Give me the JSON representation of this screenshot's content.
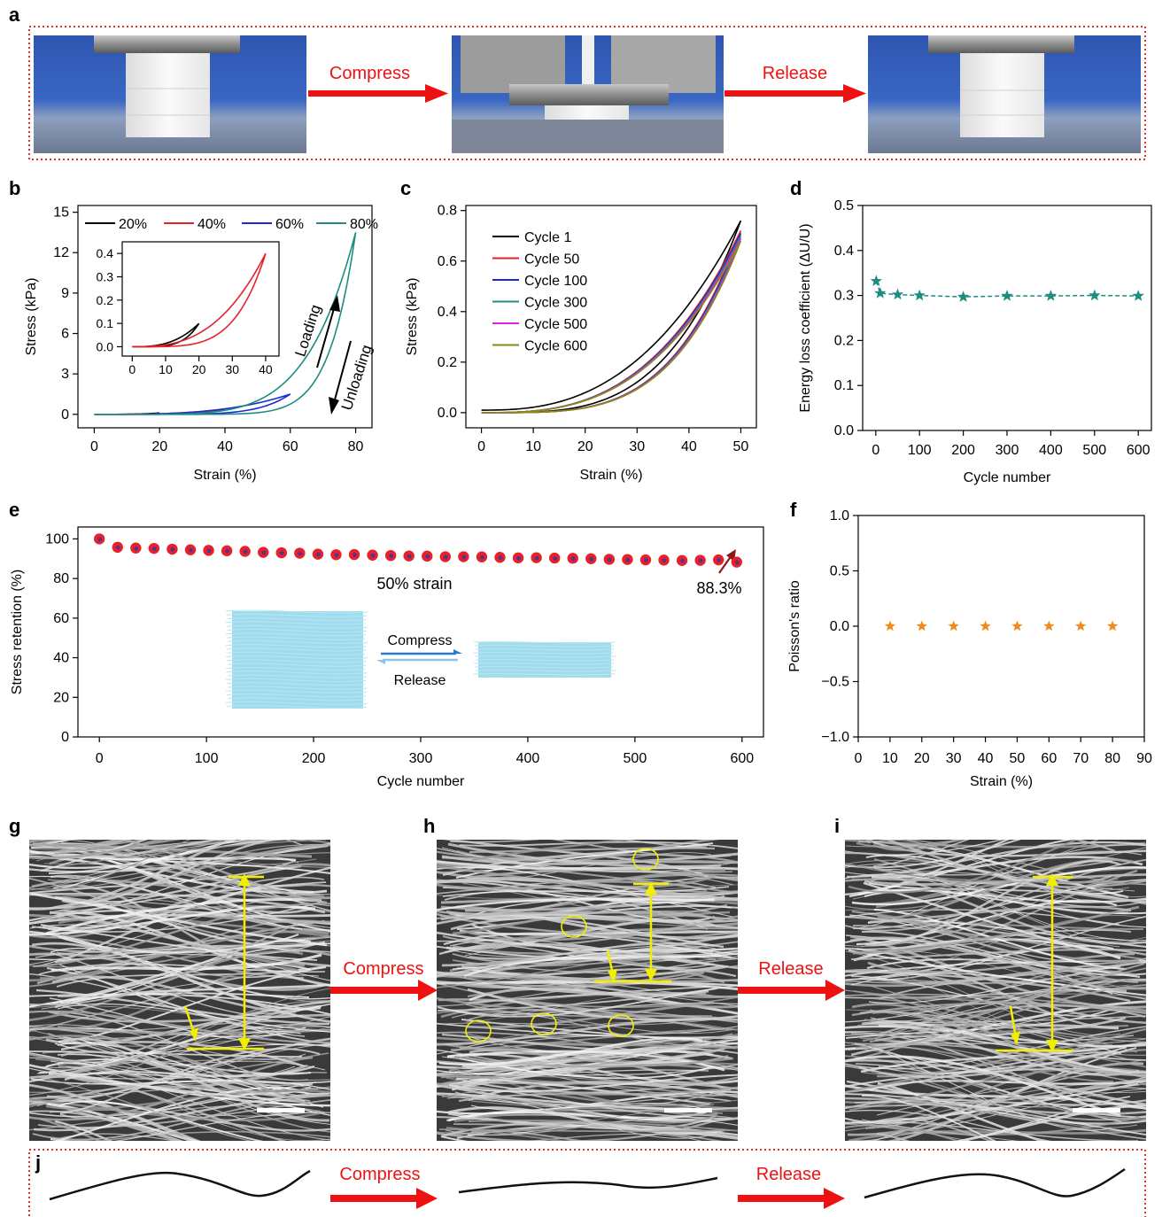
{
  "panels": {
    "a": "a",
    "b": "b",
    "c": "c",
    "d": "d",
    "e": "e",
    "f": "f",
    "g": "g",
    "h": "h",
    "i": "i",
    "j": "j"
  },
  "arrows": {
    "compress": "Compress",
    "release": "Release"
  },
  "colors": {
    "red_arrow": "#ee1111",
    "frame": "#e03030",
    "yellow": "#f2ee00",
    "teal": "#1e8c82",
    "orange": "#f08a1e",
    "bead_red": "#e8202a",
    "bead_blue": "#2a3aa8",
    "sponge": "#8fd6ea"
  },
  "chart_data": [
    {
      "id": "b",
      "type": "line",
      "xlabel": "Strain (%)",
      "ylabel": "Stress (kPa)",
      "xlim": [
        -5,
        85
      ],
      "ylim": [
        -1,
        15.5
      ],
      "xticks": [
        0,
        20,
        40,
        60,
        80
      ],
      "yticks": [
        0,
        3,
        6,
        9,
        12,
        15
      ],
      "series": [
        {
          "name": "20%",
          "color": "#000000",
          "max_strain": 20
        },
        {
          "name": "40%",
          "color": "#e8202a",
          "max_strain": 40
        },
        {
          "name": "60%",
          "color": "#1a2ad0",
          "max_strain": 60
        },
        {
          "name": "80%",
          "color": "#1e8c82",
          "max_strain": 80
        }
      ],
      "peak_stress_80": 13.5,
      "annotations": [
        "Loading",
        "Unloading"
      ],
      "legend": "top",
      "inset": {
        "xlim": [
          -3,
          44
        ],
        "ylim": [
          -0.04,
          0.45
        ],
        "xticks": [
          0,
          10,
          20,
          30,
          40
        ],
        "yticks": [
          0.0,
          0.1,
          0.2,
          0.3,
          0.4
        ],
        "series": [
          {
            "name": "20%",
            "color": "#000000",
            "max_strain": 20,
            "peak": 0.1
          },
          {
            "name": "40%",
            "color": "#e8202a",
            "max_strain": 40,
            "peak": 0.4
          }
        ]
      }
    },
    {
      "id": "c",
      "type": "line",
      "xlabel": "Strain (%)",
      "ylabel": "Stress (kPa)",
      "xlim": [
        -3,
        53
      ],
      "ylim": [
        -0.06,
        0.82
      ],
      "xticks": [
        0,
        10,
        20,
        30,
        40,
        50
      ],
      "yticks": [
        0.0,
        0.2,
        0.4,
        0.6,
        0.8
      ],
      "series": [
        {
          "name": "Cycle 1",
          "color": "#000000",
          "peak": 0.76
        },
        {
          "name": "Cycle 50",
          "color": "#e8202a",
          "peak": 0.72
        },
        {
          "name": "Cycle 100",
          "color": "#1a2ad0",
          "peak": 0.71
        },
        {
          "name": "Cycle 300",
          "color": "#1e8c82",
          "peak": 0.7
        },
        {
          "name": "Cycle 500",
          "color": "#e020e0",
          "peak": 0.69
        },
        {
          "name": "Cycle 600",
          "color": "#8a8a10",
          "peak": 0.68
        }
      ],
      "legend": "top-left"
    },
    {
      "id": "d",
      "type": "scatter",
      "xlabel": "Cycle number",
      "ylabel": "Energy loss coefficient (ΔU/U)",
      "xlim": [
        -30,
        630
      ],
      "ylim": [
        0.0,
        0.5
      ],
      "xticks": [
        0,
        100,
        200,
        300,
        400,
        500,
        600
      ],
      "yticks": [
        0.0,
        0.1,
        0.2,
        0.3,
        0.4,
        0.5
      ],
      "x": [
        1,
        10,
        50,
        100,
        200,
        300,
        400,
        500,
        600
      ],
      "y": [
        0.332,
        0.305,
        0.302,
        0.3,
        0.297,
        0.299,
        0.299,
        0.3,
        0.299
      ],
      "color": "#1e8c82"
    },
    {
      "id": "e",
      "type": "scatter",
      "xlabel": "Cycle number",
      "ylabel": "Stress retention (%)",
      "xlim": [
        -20,
        620
      ],
      "ylim": [
        0,
        106
      ],
      "xticks": [
        0,
        100,
        200,
        300,
        400,
        500,
        600
      ],
      "yticks": [
        0,
        20,
        40,
        60,
        80,
        100
      ],
      "x": [
        0,
        17,
        34,
        51,
        68,
        85,
        102,
        119,
        136,
        153,
        170,
        187,
        204,
        221,
        238,
        255,
        272,
        289,
        306,
        323,
        340,
        357,
        374,
        391,
        408,
        425,
        442,
        459,
        476,
        493,
        510,
        527,
        544,
        561,
        578,
        595
      ],
      "y": [
        100,
        95.8,
        95.4,
        95.2,
        94.8,
        94.5,
        94.2,
        94.0,
        93.7,
        93.2,
        93.0,
        92.8,
        92.3,
        92.0,
        92.1,
        91.8,
        91.6,
        91.4,
        91.3,
        91.0,
        91.0,
        90.9,
        90.7,
        90.4,
        90.5,
        90.3,
        90.2,
        90.0,
        89.7,
        89.6,
        89.4,
        89.3,
        89.1,
        89.2,
        89.4,
        88.3
      ],
      "annotations": [
        "50% strain",
        "88.3%"
      ],
      "inset_labels": {
        "compress": "Compress",
        "release": "Release"
      }
    },
    {
      "id": "f",
      "type": "scatter",
      "xlabel": "Strain (%)",
      "ylabel": "Poisson's ratio",
      "xlim": [
        0,
        90
      ],
      "ylim": [
        -1.0,
        1.0
      ],
      "xticks": [
        0,
        10,
        20,
        30,
        40,
        50,
        60,
        70,
        80,
        90
      ],
      "yticks": [
        -1.0,
        -0.5,
        0.0,
        0.5,
        1.0
      ],
      "ytick_labels": [
        "−1.0",
        "−0.5",
        "0.0",
        "0.5",
        "1.0"
      ],
      "x": [
        10,
        20,
        30,
        40,
        50,
        60,
        70,
        80
      ],
      "y": [
        0,
        0,
        0,
        0,
        0,
        0,
        0,
        0
      ],
      "color": "#f08a1e"
    }
  ]
}
